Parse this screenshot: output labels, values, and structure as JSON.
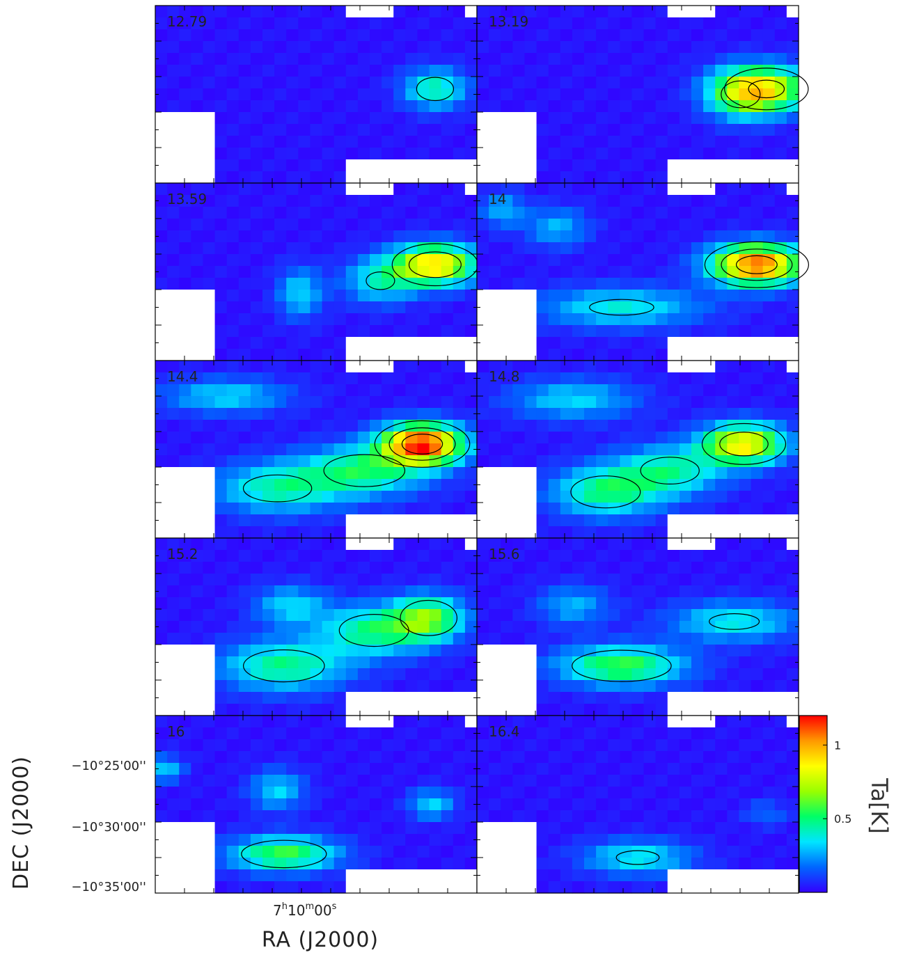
{
  "chart_data": {
    "type": "heatmap",
    "title": "",
    "layout": "channel-map grid, 2 columns x 5 rows",
    "panels": [
      {
        "label": "12.79",
        "peak_K": 0.55,
        "sources": [
          {
            "x": 0.87,
            "y": 0.47,
            "sx": 0.07,
            "sy": 0.08,
            "amp": 0.42
          }
        ]
      },
      {
        "label": "13.19",
        "peak_K": 0.75,
        "sources": [
          {
            "x": 0.9,
            "y": 0.47,
            "sx": 0.1,
            "sy": 0.09,
            "amp": 0.7
          },
          {
            "x": 0.82,
            "y": 0.5,
            "sx": 0.08,
            "sy": 0.1,
            "amp": 0.4
          }
        ]
      },
      {
        "label": "13.59",
        "peak_K": 0.95,
        "sources": [
          {
            "x": 0.87,
            "y": 0.46,
            "sx": 0.09,
            "sy": 0.08,
            "amp": 0.9
          },
          {
            "x": 0.7,
            "y": 0.55,
            "sx": 0.08,
            "sy": 0.09,
            "amp": 0.35
          },
          {
            "x": 0.45,
            "y": 0.62,
            "sx": 0.05,
            "sy": 0.1,
            "amp": 0.3
          }
        ]
      },
      {
        "label": "14",
        "peak_K": 1.1,
        "sources": [
          {
            "x": 0.87,
            "y": 0.46,
            "sx": 0.1,
            "sy": 0.08,
            "amp": 1.1
          },
          {
            "x": 0.45,
            "y": 0.7,
            "sx": 0.18,
            "sy": 0.08,
            "amp": 0.35
          },
          {
            "x": 0.25,
            "y": 0.25,
            "sx": 0.07,
            "sy": 0.08,
            "amp": 0.25
          },
          {
            "x": 0.08,
            "y": 0.15,
            "sx": 0.05,
            "sy": 0.07,
            "amp": 0.25
          }
        ]
      },
      {
        "label": "14.4",
        "peak_K": 1.15,
        "sources": [
          {
            "x": 0.83,
            "y": 0.47,
            "sx": 0.09,
            "sy": 0.08,
            "amp": 1.15
          },
          {
            "x": 0.65,
            "y": 0.62,
            "sx": 0.14,
            "sy": 0.1,
            "amp": 0.45
          },
          {
            "x": 0.38,
            "y": 0.72,
            "sx": 0.14,
            "sy": 0.1,
            "amp": 0.4
          },
          {
            "x": 0.22,
            "y": 0.2,
            "sx": 0.14,
            "sy": 0.07,
            "amp": 0.3
          }
        ]
      },
      {
        "label": "14.8",
        "peak_K": 0.95,
        "sources": [
          {
            "x": 0.83,
            "y": 0.47,
            "sx": 0.09,
            "sy": 0.08,
            "amp": 0.85
          },
          {
            "x": 0.6,
            "y": 0.62,
            "sx": 0.12,
            "sy": 0.1,
            "amp": 0.4
          },
          {
            "x": 0.4,
            "y": 0.74,
            "sx": 0.12,
            "sy": 0.1,
            "amp": 0.45
          },
          {
            "x": 0.3,
            "y": 0.22,
            "sx": 0.14,
            "sy": 0.08,
            "amp": 0.3
          }
        ]
      },
      {
        "label": "15.2",
        "peak_K": 0.6,
        "sources": [
          {
            "x": 0.85,
            "y": 0.45,
            "sx": 0.08,
            "sy": 0.09,
            "amp": 0.55
          },
          {
            "x": 0.68,
            "y": 0.52,
            "sx": 0.12,
            "sy": 0.1,
            "amp": 0.45
          },
          {
            "x": 0.4,
            "y": 0.72,
            "sx": 0.14,
            "sy": 0.1,
            "amp": 0.45
          },
          {
            "x": 0.42,
            "y": 0.38,
            "sx": 0.08,
            "sy": 0.08,
            "amp": 0.3
          }
        ]
      },
      {
        "label": "15.6",
        "peak_K": 0.6,
        "sources": [
          {
            "x": 0.8,
            "y": 0.47,
            "sx": 0.14,
            "sy": 0.08,
            "amp": 0.35
          },
          {
            "x": 0.45,
            "y": 0.72,
            "sx": 0.14,
            "sy": 0.08,
            "amp": 0.55
          },
          {
            "x": 0.3,
            "y": 0.38,
            "sx": 0.08,
            "sy": 0.08,
            "amp": 0.25
          }
        ]
      },
      {
        "label": "16",
        "peak_K": 0.55,
        "sources": [
          {
            "x": 0.4,
            "y": 0.78,
            "sx": 0.12,
            "sy": 0.07,
            "amp": 0.55
          },
          {
            "x": 0.38,
            "y": 0.42,
            "sx": 0.06,
            "sy": 0.08,
            "amp": 0.3
          },
          {
            "x": 0.86,
            "y": 0.5,
            "sx": 0.05,
            "sy": 0.06,
            "amp": 0.3
          },
          {
            "x": 0.03,
            "y": 0.3,
            "sx": 0.04,
            "sy": 0.05,
            "amp": 0.3
          }
        ]
      },
      {
        "label": "16.4",
        "peak_K": 0.35,
        "sources": [
          {
            "x": 0.5,
            "y": 0.8,
            "sx": 0.12,
            "sy": 0.07,
            "amp": 0.35
          },
          {
            "x": 0.9,
            "y": 0.55,
            "sx": 0.05,
            "sy": 0.05,
            "amp": 0.15
          }
        ]
      }
    ],
    "xlabel": "RA (J2000)",
    "xtick_label": {
      "hours": "7",
      "minutes": "10",
      "seconds": "00"
    },
    "ylabel": "DEC (J2000)",
    "yticks": [
      "−10°25'00''",
      "−10°30'00''",
      "−10°35'00''"
    ],
    "colorbar": {
      "label": "Ta[K]",
      "min": 0,
      "max": 1.2,
      "ticks": [
        0.5,
        1
      ]
    },
    "contour_levels_K": [
      0.3,
      0.6,
      0.9
    ],
    "colormap": [
      "#3300ff",
      "#0066ff",
      "#00e5ff",
      "#00ff66",
      "#99ff00",
      "#ffff00",
      "#ff9900",
      "#ff0000"
    ],
    "mask_color": "#ffffff"
  }
}
